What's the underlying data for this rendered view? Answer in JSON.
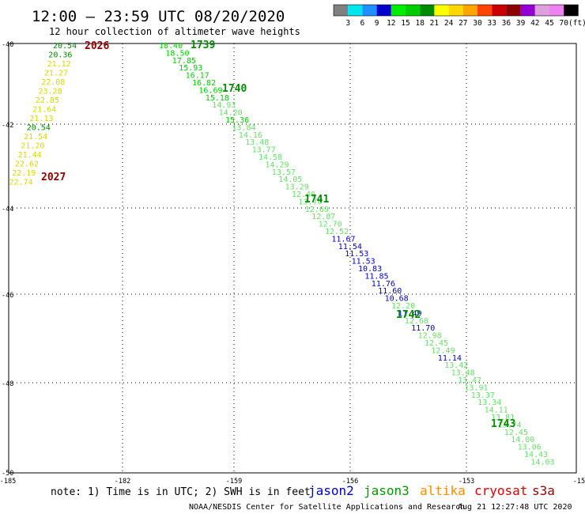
{
  "title": "12:00 – 23:59 UTC 08/20/2020",
  "subtitle": "12 hour collection of altimeter wave heights",
  "legend": {
    "ticks": [
      "3",
      "6",
      "9",
      "12",
      "15",
      "18",
      "21",
      "24",
      "27",
      "30",
      "33",
      "36",
      "39",
      "42",
      "45",
      "70"
    ],
    "unit": "(ft)",
    "colors": [
      "#808080",
      "#00e5ee",
      "#1e90ff",
      "#0000cd",
      "#00ee00",
      "#00cd00",
      "#008b00",
      "#ffff00",
      "#ffd700",
      "#ffa500",
      "#ff4500",
      "#cd0000",
      "#8b0000",
      "#9400d3",
      "#dda0dd",
      "#ee82ee",
      "#000000"
    ]
  },
  "axes": {
    "lat_labels": [
      "-40",
      "-42",
      "-44",
      "-46",
      "-48",
      "-50"
    ],
    "lon_labels": [
      "-185",
      "-182",
      "-159",
      "-156",
      "-153",
      "-150"
    ]
  },
  "passes": [
    {
      "time": "2026",
      "color": "#8b0000"
    },
    {
      "time": "2027",
      "color": "#8b0000"
    },
    {
      "time": "1739",
      "color": "#008b00"
    },
    {
      "time": "1740",
      "color": "#008b00"
    },
    {
      "time": "1741",
      "color": "#008b00"
    },
    {
      "time": "1742",
      "color": "#008b00"
    },
    {
      "time": "1743",
      "color": "#008b00"
    }
  ],
  "track_west": [
    {
      "v": "20.54",
      "c": "#008b00"
    },
    {
      "v": "20.36",
      "c": "#008b00"
    },
    {
      "v": "21.12",
      "c": "#d8d800"
    },
    {
      "v": "21.27",
      "c": "#d8d800"
    },
    {
      "v": "22.08",
      "c": "#d8d800"
    },
    {
      "v": "23.28",
      "c": "#d8d800"
    },
    {
      "v": "22.85",
      "c": "#d8d800"
    },
    {
      "v": "21.64",
      "c": "#d8d800"
    },
    {
      "v": "21.13",
      "c": "#d8d800"
    },
    {
      "v": "20.54",
      "c": "#008b00"
    },
    {
      "v": "21.54",
      "c": "#d8d800"
    },
    {
      "v": "21.20",
      "c": "#d8d800"
    },
    {
      "v": "21.44",
      "c": "#d8d800"
    },
    {
      "v": "22.62",
      "c": "#d8d800"
    },
    {
      "v": "22.19",
      "c": "#d8d800"
    },
    {
      "v": "22.74",
      "c": "#d8d800"
    }
  ],
  "track_east": [
    {
      "v": "18.40",
      "c": "#00cd00"
    },
    {
      "v": "18.50",
      "c": "#00cd00"
    },
    {
      "v": "17.85",
      "c": "#00cd00"
    },
    {
      "v": "15.93",
      "c": "#00cd00"
    },
    {
      "v": "16.17",
      "c": "#00cd00"
    },
    {
      "v": "16.82",
      "c": "#00cd00"
    },
    {
      "v": "16.69",
      "c": "#00cd00"
    },
    {
      "v": "15.18",
      "c": "#00cd00"
    },
    {
      "v": "14.93",
      "c": "#66e066"
    },
    {
      "v": "14.20",
      "c": "#66e066"
    },
    {
      "v": "15.36",
      "c": "#00cd00"
    },
    {
      "v": "13.84",
      "c": "#66e066"
    },
    {
      "v": "14.16",
      "c": "#66e066"
    },
    {
      "v": "13.48",
      "c": "#66e066"
    },
    {
      "v": "13.77",
      "c": "#66e066"
    },
    {
      "v": "14.58",
      "c": "#66e066"
    },
    {
      "v": "14.29",
      "c": "#66e066"
    },
    {
      "v": "13.57",
      "c": "#66e066"
    },
    {
      "v": "14.05",
      "c": "#66e066"
    },
    {
      "v": "13.29",
      "c": "#66e066"
    },
    {
      "v": "12.40",
      "c": "#66e066"
    },
    {
      "v": "13.70",
      "c": "#66e066"
    },
    {
      "v": "12.69",
      "c": "#66e066"
    },
    {
      "v": "12.87",
      "c": "#66e066"
    },
    {
      "v": "12.70",
      "c": "#66e066"
    },
    {
      "v": "12.52",
      "c": "#66e066"
    },
    {
      "v": "11.67",
      "c": "#0000cd"
    },
    {
      "v": "11.54",
      "c": "#0000cd"
    },
    {
      "v": "11.53",
      "c": "#0000cd"
    },
    {
      "v": "11.53",
      "c": "#0000cd"
    },
    {
      "v": "10.83",
      "c": "#0000cd"
    },
    {
      "v": "11.85",
      "c": "#0000cd"
    },
    {
      "v": "11.76",
      "c": "#0000cd"
    },
    {
      "v": "11.60",
      "c": "#0000cd"
    },
    {
      "v": "10.68",
      "c": "#0000cd"
    },
    {
      "v": "12.20",
      "c": "#66e066"
    },
    {
      "v": "11.49",
      "c": "#0000cd"
    },
    {
      "v": "12.68",
      "c": "#66e066"
    },
    {
      "v": "11.70",
      "c": "#0000cd"
    },
    {
      "v": "12.98",
      "c": "#66e066"
    },
    {
      "v": "12.45",
      "c": "#66e066"
    },
    {
      "v": "12.49",
      "c": "#66e066"
    },
    {
      "v": "11.14",
      "c": "#0000cd"
    },
    {
      "v": "13.42",
      "c": "#66e066"
    },
    {
      "v": "13.48",
      "c": "#66e066"
    },
    {
      "v": "13.47",
      "c": "#66e066"
    },
    {
      "v": "13.91",
      "c": "#66e066"
    },
    {
      "v": "13.37",
      "c": "#66e066"
    },
    {
      "v": "13.34",
      "c": "#66e066"
    },
    {
      "v": "14.11",
      "c": "#66e066"
    },
    {
      "v": "13.81",
      "c": "#66e066"
    },
    {
      "v": "13.74",
      "c": "#66e066"
    },
    {
      "v": "12.45",
      "c": "#66e066"
    },
    {
      "v": "14.00",
      "c": "#66e066"
    },
    {
      "v": "13.06",
      "c": "#66e066"
    },
    {
      "v": "14.43",
      "c": "#66e066"
    },
    {
      "v": "14.03",
      "c": "#66e066"
    }
  ],
  "footer": {
    "note": "note: 1) Time is in UTC; 2) SWH is in feet",
    "satellites": [
      {
        "name": "jason2",
        "color": "#0000cd"
      },
      {
        "name": "jason3",
        "color": "#009900"
      },
      {
        "name": "altika",
        "color": "#ff8c00"
      },
      {
        "name": "cryosat",
        "color": "#dd0000"
      },
      {
        "name": "s3a",
        "color": "#990000"
      }
    ],
    "credit": "NOAA/NESDIS Center for Satellite Applications and Research",
    "timestamp": "Aug 21 12:27:48 UTC 2020"
  }
}
